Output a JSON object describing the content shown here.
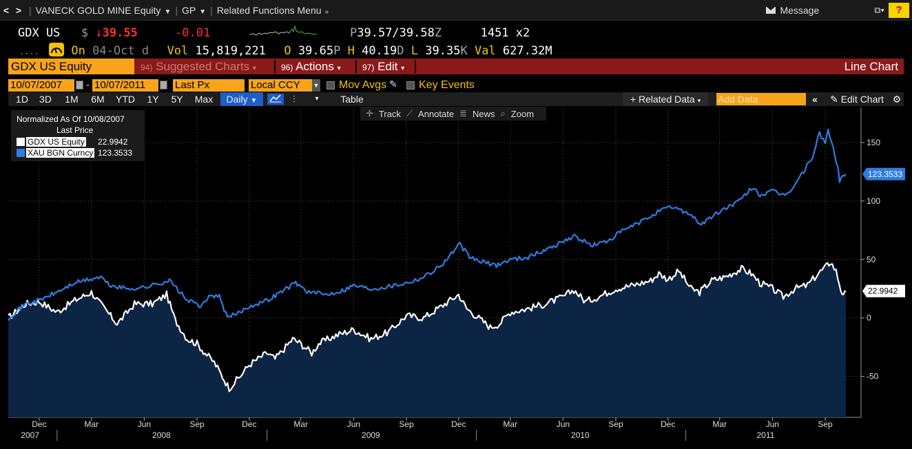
{
  "titlebar": {
    "security": "VANECK GOLD MINE Equity",
    "function": "GP",
    "related": "Related Functions Menu",
    "message": "Message",
    "help": "?"
  },
  "quote": {
    "ticker": "GDX US",
    "currency_sym": "$",
    "arrow": "↓",
    "last": "39.55",
    "change": "-0.01",
    "bidask_p": "P",
    "bidask": "39.57/39.58",
    "bidask_z": "Z",
    "size": "1451",
    "size_x": "x2",
    "dots": "....",
    "on_label": "On",
    "date": "04-Oct",
    "date_suffix": "d",
    "vol_label": "Vol",
    "vol": "15,819,221",
    "open_label": "O",
    "open": "39.65",
    "open_suffix": "P",
    "high_label": "H",
    "high": "40.19",
    "high_suffix": "D",
    "low_label": "L",
    "low": "39.35",
    "low_suffix": "K",
    "val_label": "Val",
    "val": "627.32M"
  },
  "menubar": {
    "ticker": "GDX US Equity",
    "suggested_num": "94)",
    "suggested": "Suggested Charts",
    "actions_num": "96)",
    "actions": "Actions",
    "edit_num": "97)",
    "edit": "Edit",
    "chart_name": "Line Chart"
  },
  "settings": {
    "start_date": "10/07/2007",
    "end_date": "10/07/2011",
    "dash": "-",
    "field": "Last Px",
    "currency": "Local CCY",
    "mov_avgs": "Mov Avgs",
    "key_events": "Key Events"
  },
  "toolbar": {
    "periods": [
      "1D",
      "3D",
      "1M",
      "6M",
      "YTD",
      "1Y",
      "5Y",
      "Max"
    ],
    "frequency": "Daily",
    "table": "Table",
    "related_data": "Related Data",
    "add_data_placeholder": "Add Data",
    "edit_chart": "Edit Chart"
  },
  "chart_tools": {
    "track": "Track",
    "annotate": "Annotate",
    "news": "News",
    "zoom": "Zoom"
  },
  "legend": {
    "title": "Normalized As Of 10/08/2007",
    "subtitle": "Last Price",
    "items": [
      {
        "name": "GDX US Equity",
        "value": "22.9942",
        "color": "#ffffff"
      },
      {
        "name": "XAU BGN Curncy",
        "value": "123.3533",
        "color": "#2f7de1"
      }
    ]
  },
  "colors": {
    "orange": "#f7a41b",
    "menu_red": "#8a1a1a",
    "gold_blue": "#2f7de1",
    "area_fill": "#0d2545"
  },
  "chart_data": {
    "type": "line",
    "title": "",
    "xlabel": "",
    "ylabel": "",
    "ylim": [
      -85,
      180
    ],
    "yticks": [
      -50,
      0,
      50,
      100,
      150
    ],
    "grid": true,
    "legend_position": "top-left",
    "x_month_labels": [
      "Dec",
      "Mar",
      "Jun",
      "Sep",
      "Dec",
      "Mar",
      "Jun",
      "Sep",
      "Dec",
      "Mar",
      "Jun",
      "Sep",
      "Dec",
      "Mar",
      "Jun",
      "Sep"
    ],
    "x_year_labels": [
      "2007",
      "2008",
      "2009",
      "2010",
      "2011"
    ],
    "x_range": [
      "2007-10-08",
      "2011-10-07"
    ],
    "series": [
      {
        "name": "GDX US Equity",
        "color": "#ffffff",
        "fill": "#0d2545",
        "last_value": "22.9942",
        "points": [
          [
            "2007-10-08",
            0
          ],
          [
            "2007-11-07",
            12
          ],
          [
            "2007-12-01",
            14
          ],
          [
            "2008-01-01",
            5
          ],
          [
            "2008-02-01",
            15
          ],
          [
            "2008-03-01",
            22
          ],
          [
            "2008-03-20",
            10
          ],
          [
            "2008-04-15",
            -5
          ],
          [
            "2008-05-15",
            12
          ],
          [
            "2008-06-15",
            12
          ],
          [
            "2008-07-10",
            20
          ],
          [
            "2008-07-25",
            -2
          ],
          [
            "2008-08-15",
            -18
          ],
          [
            "2008-09-01",
            -22
          ],
          [
            "2008-09-15",
            -30
          ],
          [
            "2008-10-01",
            -38
          ],
          [
            "2008-10-27",
            -60
          ],
          [
            "2008-11-15",
            -50
          ],
          [
            "2008-12-01",
            -40
          ],
          [
            "2009-01-01",
            -30
          ],
          [
            "2009-01-15",
            -35
          ],
          [
            "2009-02-15",
            -18
          ],
          [
            "2009-03-01",
            -22
          ],
          [
            "2009-03-20",
            -30
          ],
          [
            "2009-04-01",
            -22
          ],
          [
            "2009-05-01",
            -15
          ],
          [
            "2009-06-01",
            -10
          ],
          [
            "2009-07-01",
            -18
          ],
          [
            "2009-08-01",
            -12
          ],
          [
            "2009-09-01",
            2
          ],
          [
            "2009-10-01",
            0
          ],
          [
            "2009-11-01",
            10
          ],
          [
            "2009-12-01",
            20
          ],
          [
            "2009-12-15",
            8
          ],
          [
            "2010-01-05",
            0
          ],
          [
            "2010-01-25",
            -8
          ],
          [
            "2010-02-10",
            -5
          ],
          [
            "2010-03-01",
            5
          ],
          [
            "2010-04-01",
            8
          ],
          [
            "2010-05-01",
            12
          ],
          [
            "2010-06-01",
            18
          ],
          [
            "2010-06-20",
            24
          ],
          [
            "2010-07-10",
            14
          ],
          [
            "2010-08-01",
            18
          ],
          [
            "2010-09-01",
            25
          ],
          [
            "2010-10-01",
            28
          ],
          [
            "2010-11-01",
            32
          ],
          [
            "2010-11-15",
            38
          ],
          [
            "2010-12-01",
            33
          ],
          [
            "2010-12-20",
            40
          ],
          [
            "2011-01-10",
            25
          ],
          [
            "2011-01-25",
            22
          ],
          [
            "2011-02-15",
            32
          ],
          [
            "2011-03-10",
            35
          ],
          [
            "2011-04-08",
            42
          ],
          [
            "2011-04-25",
            38
          ],
          [
            "2011-05-10",
            30
          ],
          [
            "2011-06-01",
            25
          ],
          [
            "2011-06-20",
            18
          ],
          [
            "2011-07-10",
            25
          ],
          [
            "2011-08-01",
            28
          ],
          [
            "2011-08-20",
            38
          ],
          [
            "2011-09-05",
            45
          ],
          [
            "2011-09-10",
            48
          ],
          [
            "2011-09-20",
            40
          ],
          [
            "2011-09-28",
            25
          ],
          [
            "2011-10-03",
            18
          ],
          [
            "2011-10-07",
            23
          ]
        ]
      },
      {
        "name": "XAU BGN Curncy",
        "color": "#2f7de1",
        "last_value": "123.3533",
        "points": [
          [
            "2007-10-08",
            0
          ],
          [
            "2007-11-07",
            12
          ],
          [
            "2007-12-01",
            15
          ],
          [
            "2008-01-01",
            22
          ],
          [
            "2008-02-01",
            30
          ],
          [
            "2008-03-17",
            35
          ],
          [
            "2008-04-01",
            28
          ],
          [
            "2008-05-01",
            25
          ],
          [
            "2008-06-01",
            26
          ],
          [
            "2008-07-15",
            32
          ],
          [
            "2008-08-15",
            15
          ],
          [
            "2008-09-10",
            10
          ],
          [
            "2008-09-25",
            20
          ],
          [
            "2008-10-10",
            18
          ],
          [
            "2008-10-24",
            0
          ],
          [
            "2008-11-15",
            5
          ],
          [
            "2008-12-01",
            10
          ],
          [
            "2009-01-01",
            15
          ],
          [
            "2009-02-20",
            30
          ],
          [
            "2009-03-15",
            22
          ],
          [
            "2009-04-15",
            20
          ],
          [
            "2009-05-15",
            24
          ],
          [
            "2009-06-01",
            28
          ],
          [
            "2009-07-01",
            25
          ],
          [
            "2009-08-01",
            27
          ],
          [
            "2009-09-01",
            30
          ],
          [
            "2009-10-01",
            35
          ],
          [
            "2009-11-01",
            45
          ],
          [
            "2009-12-03",
            63
          ],
          [
            "2009-12-20",
            52
          ],
          [
            "2010-01-10",
            48
          ],
          [
            "2010-02-05",
            45
          ],
          [
            "2010-03-01",
            50
          ],
          [
            "2010-04-01",
            52
          ],
          [
            "2010-05-01",
            58
          ],
          [
            "2010-06-20",
            70
          ],
          [
            "2010-07-20",
            62
          ],
          [
            "2010-08-15",
            65
          ],
          [
            "2010-09-15",
            75
          ],
          [
            "2010-10-15",
            82
          ],
          [
            "2010-11-10",
            90
          ],
          [
            "2010-12-07",
            95
          ],
          [
            "2011-01-05",
            90
          ],
          [
            "2011-01-28",
            80
          ],
          [
            "2011-02-20",
            88
          ],
          [
            "2011-03-15",
            95
          ],
          [
            "2011-04-05",
            100
          ],
          [
            "2011-04-28",
            112
          ],
          [
            "2011-05-10",
            105
          ],
          [
            "2011-06-01",
            108
          ],
          [
            "2011-06-20",
            105
          ],
          [
            "2011-07-05",
            110
          ],
          [
            "2011-07-25",
            125
          ],
          [
            "2011-08-10",
            138
          ],
          [
            "2011-08-22",
            158
          ],
          [
            "2011-09-01",
            150
          ],
          [
            "2011-09-06",
            160
          ],
          [
            "2011-09-15",
            145
          ],
          [
            "2011-09-23",
            128
          ],
          [
            "2011-09-26",
            118
          ],
          [
            "2011-10-07",
            123
          ]
        ]
      }
    ]
  }
}
